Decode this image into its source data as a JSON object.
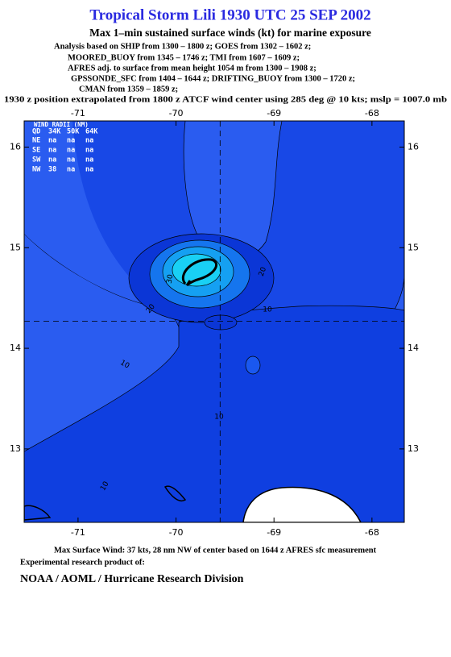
{
  "header": {
    "title": "Tropical Storm Lili 1930 UTC 25 SEP 2002",
    "subtitle": "Max 1–min sustained surface winds (kt) for marine exposure",
    "analysis": [
      "Analysis based on  SHIP from 1300 – 1800 z;  GOES from 1302 – 1602 z;",
      "MOORED_BUOY from 1345 – 1746 z;  TMI from 1607 – 1609 z;",
      "AFRES adj. to surface from mean height 1054 m from 1300 – 1908 z;",
      "GPSSONDE_SFC from 1404 – 1644 z;  DRIFTING_BUOY from 1300 – 1720 z;",
      "CMAN from 1359 – 1859 z;"
    ],
    "position_note": "1930 z position extrapolated from 1800 z ATCF wind center using 285 deg @ 10 kts; mslp = 1007.0 mb"
  },
  "chart_data": {
    "type": "contour",
    "xlim": [
      -71.55,
      -67.67
    ],
    "xticks": [
      -71,
      -70,
      -69,
      -68
    ],
    "ylim": [
      12.27,
      16.26
    ],
    "yticks": [
      13,
      14,
      15,
      16
    ],
    "center": {
      "lon": -69.55,
      "lat": 14.27
    },
    "contour_labels": [
      "20",
      "30",
      "20",
      "10",
      "10",
      "10",
      "10"
    ],
    "wind_radii": {
      "title": "WIND RADII (NM)",
      "columns": [
        "QD",
        "34K",
        "50K",
        "64K"
      ],
      "rows": [
        [
          "NE",
          "na",
          "na",
          "na"
        ],
        [
          "SE",
          "na",
          "na",
          "na"
        ],
        [
          "SW",
          "na",
          "na",
          "na"
        ],
        [
          "NW",
          38,
          "na",
          "na"
        ]
      ]
    }
  },
  "footer": {
    "max_wind": "Max Surface Wind: 37 kts, 28 nm NW of center based on 1644 z AFRES sfc measurement",
    "credit_intro": "Experimental research product of:",
    "credit": "NOAA / AOML / Hurricane Research Division"
  }
}
